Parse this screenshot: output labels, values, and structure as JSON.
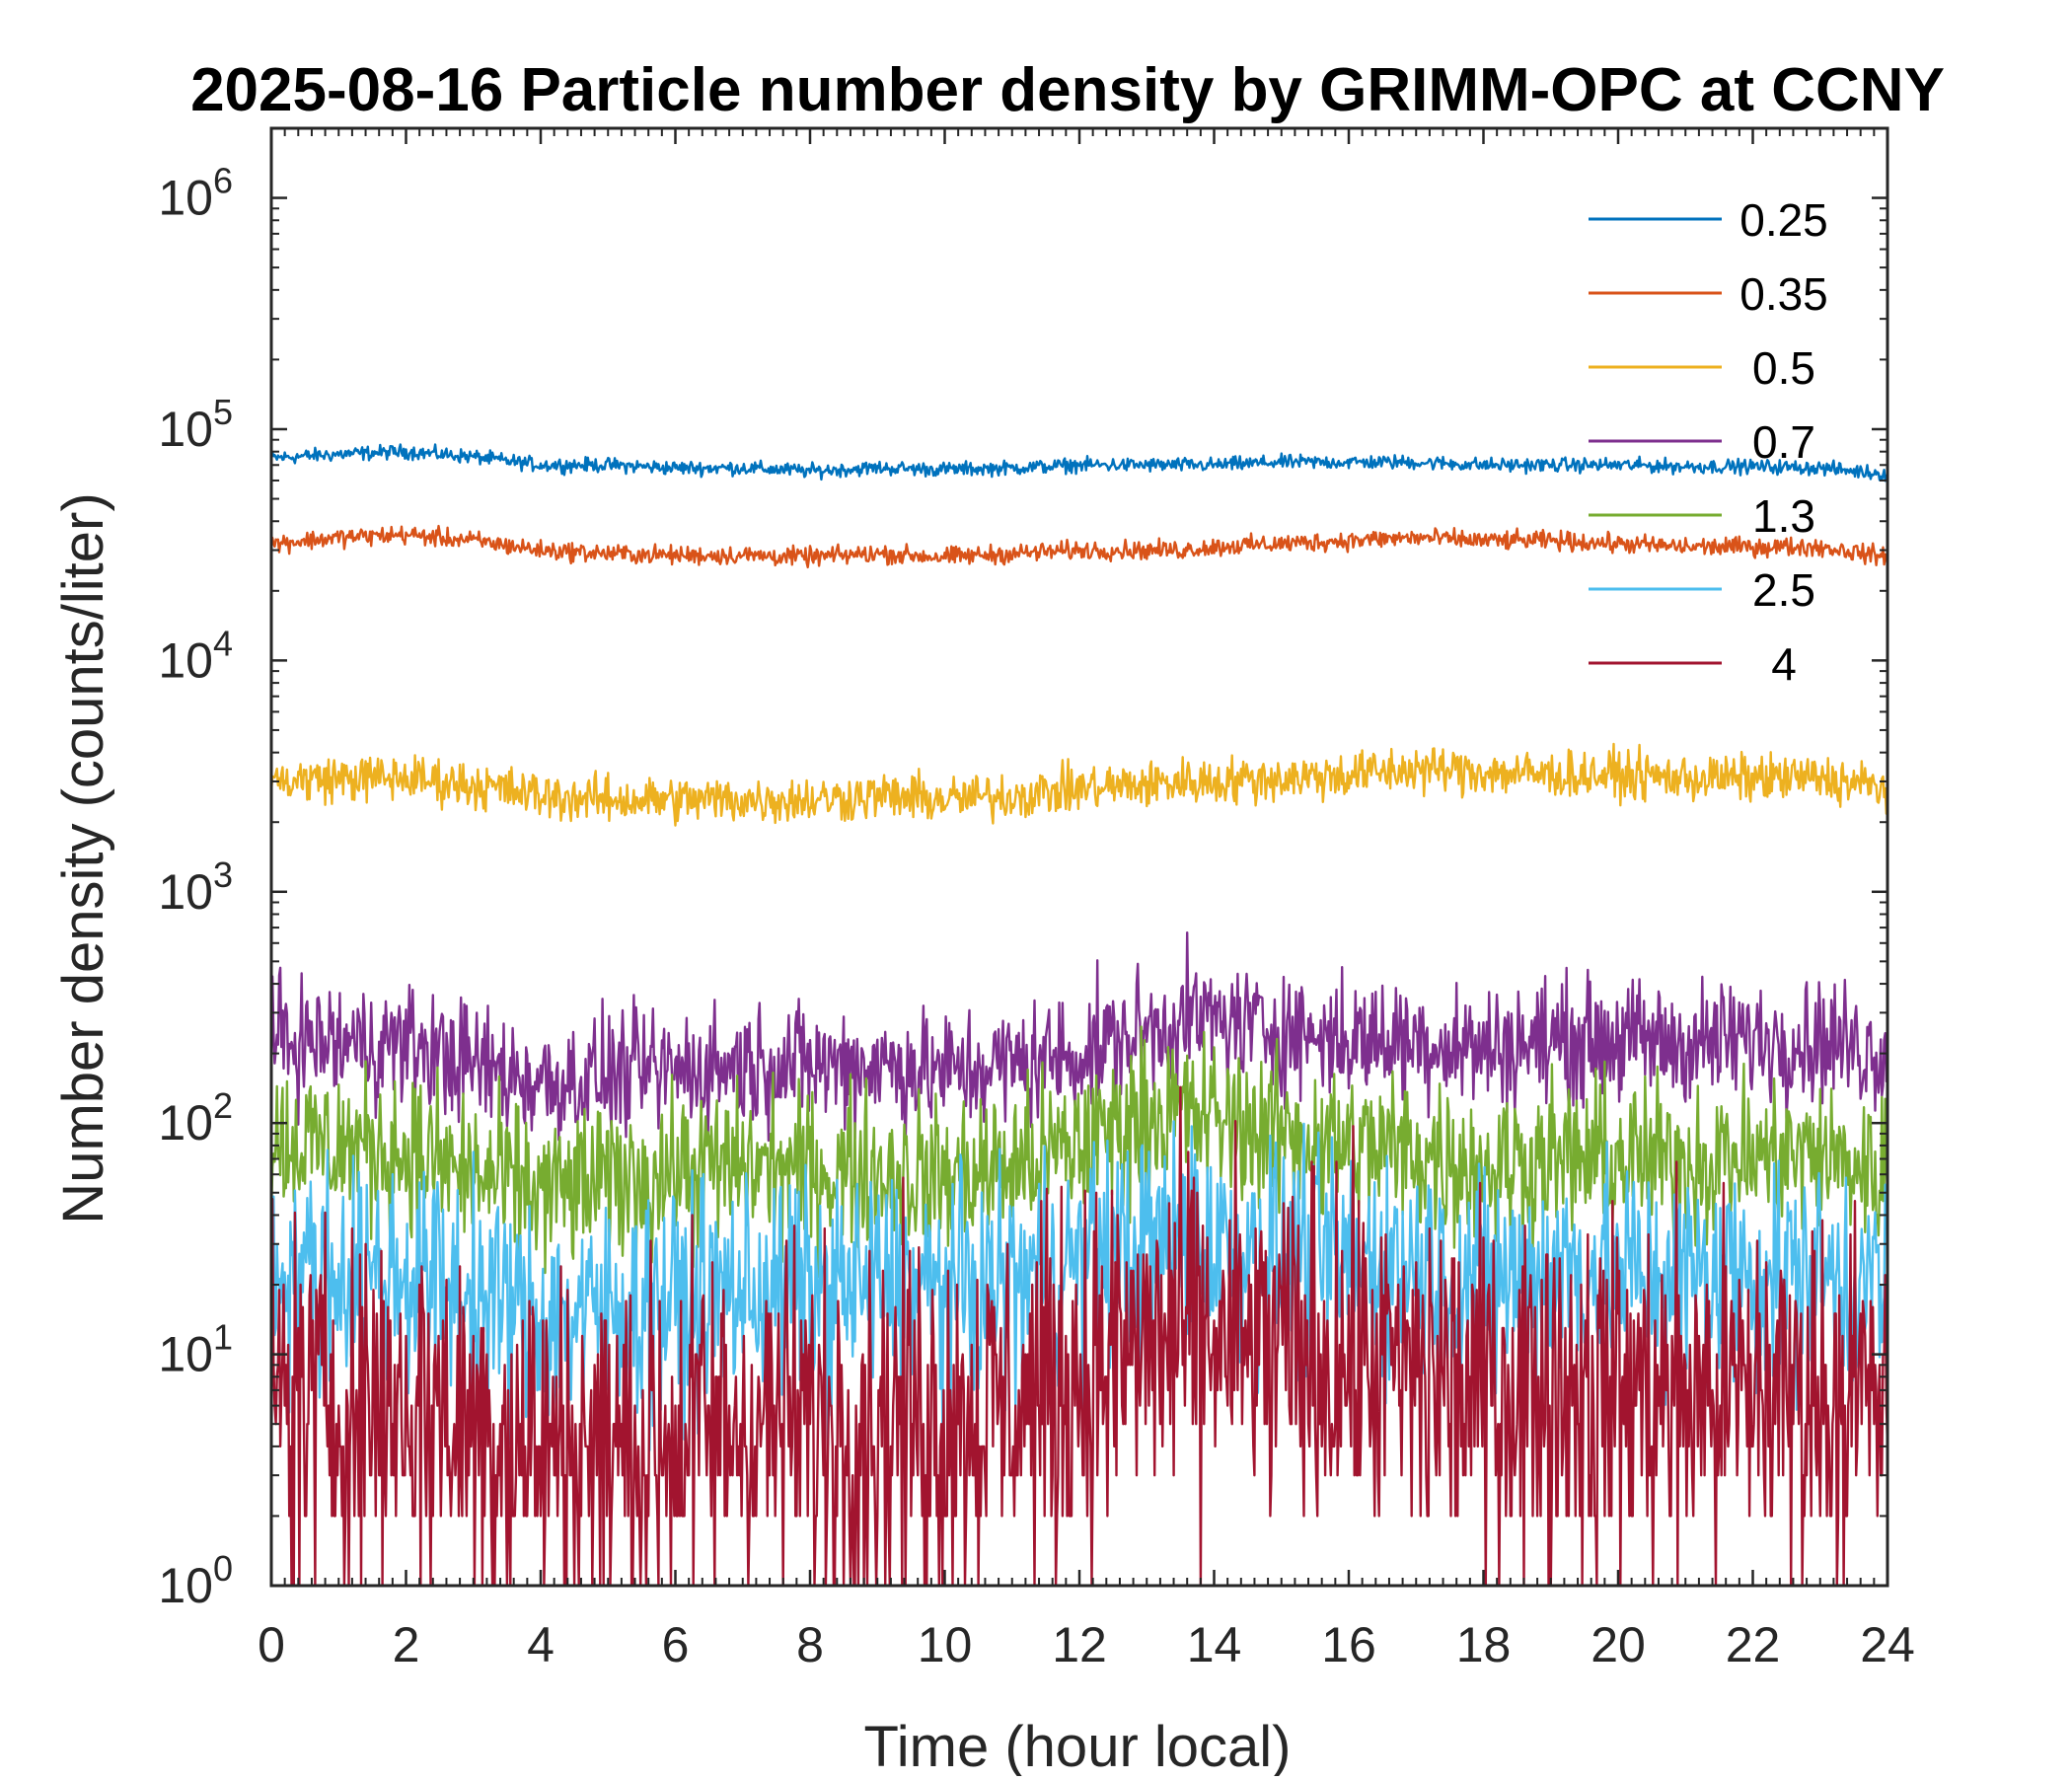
{
  "chart_data": {
    "type": "line",
    "title": "2025-08-16 Particle number density by GRIMM-OPC at CCNY",
    "xlabel": "Time (hour local)",
    "ylabel": "Number density (counts/liter)",
    "xlim": [
      0,
      24
    ],
    "ylim": [
      1,
      2000000
    ],
    "yscale": "log",
    "xticks": [
      0,
      2,
      4,
      6,
      8,
      10,
      12,
      14,
      16,
      18,
      20,
      22,
      24
    ],
    "xtick_labels": [
      "0",
      "2",
      "4",
      "6",
      "8",
      "10",
      "12",
      "14",
      "16",
      "18",
      "20",
      "22",
      "24"
    ],
    "yticks": [
      1,
      10,
      100,
      1000,
      10000,
      100000,
      1000000
    ],
    "ytick_base": "10",
    "ytick_exponents": [
      "0",
      "1",
      "2",
      "3",
      "4",
      "5",
      "6"
    ],
    "grid": false,
    "legend_position": "top-right",
    "x": [
      0,
      1,
      2,
      3,
      4,
      5,
      6,
      7,
      8,
      9,
      10,
      11,
      12,
      13,
      13.5,
      14,
      15,
      16,
      17,
      18,
      19,
      20,
      21,
      22,
      23,
      24
    ],
    "series": [
      {
        "name": "0.25",
        "color": "#0072BD",
        "noise": 0.015,
        "values": [
          75000,
          78000,
          80000,
          76000,
          70000,
          70000,
          68000,
          68000,
          66000,
          68000,
          67000,
          68000,
          70000,
          70000,
          70000,
          70000,
          72000,
          72000,
          72000,
          70000,
          70000,
          70000,
          69000,
          69000,
          68000,
          64000
        ]
      },
      {
        "name": "0.35",
        "color": "#D95319",
        "noise": 0.02,
        "values": [
          32000,
          34000,
          35000,
          33000,
          30000,
          29000,
          28500,
          28500,
          28000,
          29000,
          28000,
          29000,
          30000,
          30000,
          30000,
          31000,
          32000,
          33000,
          34000,
          33000,
          33000,
          32000,
          31000,
          31000,
          31000,
          28000
        ]
      },
      {
        "name": "0.5",
        "color": "#EDB120",
        "noise": 0.05,
        "values": [
          3000,
          3100,
          3100,
          2900,
          2600,
          2500,
          2500,
          2500,
          2500,
          2600,
          2500,
          2600,
          2800,
          2900,
          3000,
          3000,
          3100,
          3200,
          3400,
          3300,
          3200,
          3200,
          3100,
          3100,
          3100,
          2800
        ]
      },
      {
        "name": "0.7",
        "color": "#7E2F8E",
        "noise": 0.13,
        "values": [
          230,
          220,
          220,
          180,
          150,
          160,
          170,
          180,
          180,
          180,
          165,
          180,
          200,
          250,
          280,
          280,
          250,
          230,
          230,
          210,
          230,
          230,
          220,
          230,
          230,
          200
        ]
      },
      {
        "name": "1.3",
        "color": "#77AC30",
        "noise": 0.17,
        "values": [
          85,
          80,
          75,
          60,
          50,
          55,
          62,
          65,
          62,
          62,
          58,
          65,
          80,
          110,
          110,
          105,
          90,
          80,
          75,
          65,
          70,
          70,
          68,
          72,
          72,
          60
        ]
      },
      {
        "name": "2.5",
        "color": "#4DBEEE",
        "noise": 0.24,
        "values": [
          24,
          22,
          22,
          18,
          14,
          15,
          17,
          19,
          19,
          20,
          18,
          20,
          25,
          30,
          32,
          30,
          27,
          25,
          25,
          20,
          23,
          23,
          22,
          23,
          22,
          20
        ]
      },
      {
        "name": "4",
        "color": "#A2142F",
        "noise": 0.38,
        "values": [
          7,
          6,
          6,
          5,
          4,
          4,
          4.5,
          5,
          5,
          5.5,
          5.5,
          6,
          8,
          11,
          12,
          11,
          10,
          9,
          8,
          7,
          7.5,
          7,
          6.5,
          7,
          7,
          6
        ]
      }
    ]
  }
}
